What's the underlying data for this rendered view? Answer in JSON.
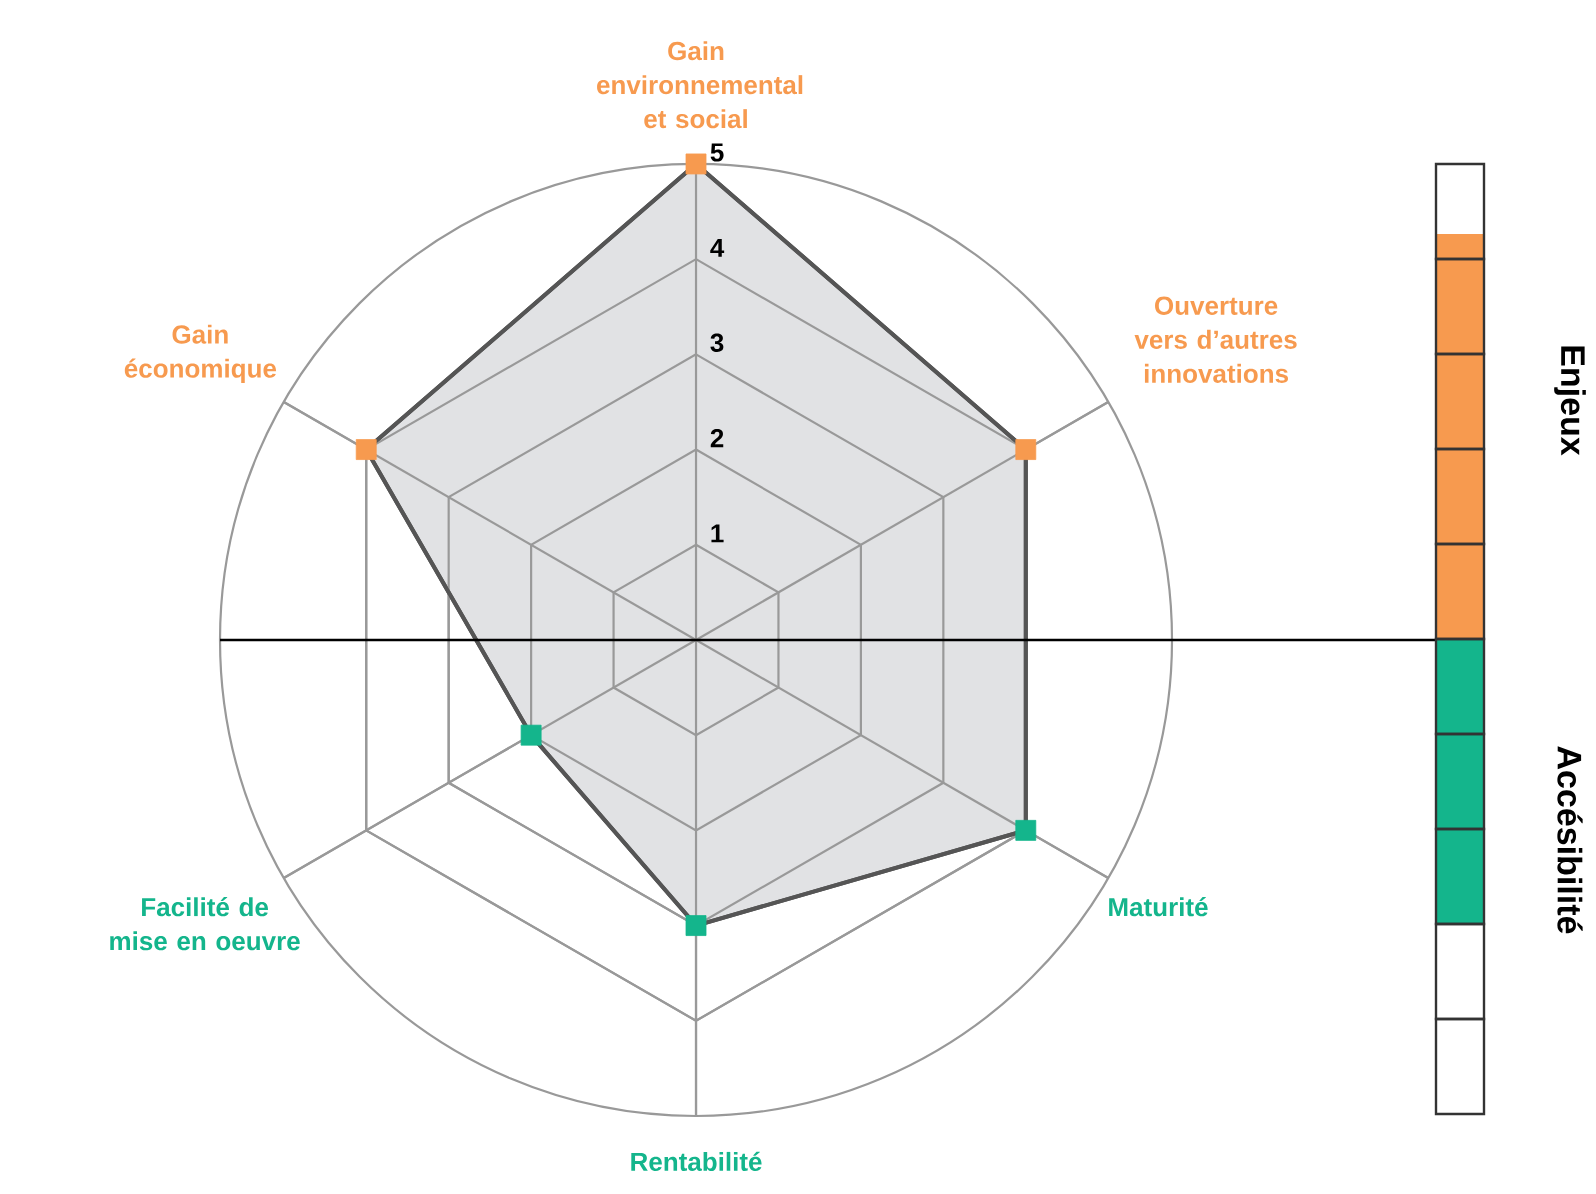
{
  "chart_data": {
    "type": "radar",
    "categories": [
      "Gain environnemental et social",
      "Ouverture vers d’autres innovations",
      "Maturité",
      "Rentabilité",
      "Facilité de mise en oeuvre",
      "Gain économique"
    ],
    "series": [
      {
        "color": "#555555",
        "values": [
          5,
          4,
          4,
          3,
          2,
          4
        ]
      }
    ],
    "colors": [
      "#f79a4f",
      "#f79a4f",
      "#14b58c",
      "#14b58c",
      "#14b58c",
      "#f79a4f"
    ],
    "ylim": [
      0,
      5
    ],
    "yticks": [
      1,
      2,
      3,
      4,
      5
    ],
    "marker": "square",
    "grid": true,
    "annotations": [
      "Enjeux",
      "Accésibilité"
    ]
  }
}
